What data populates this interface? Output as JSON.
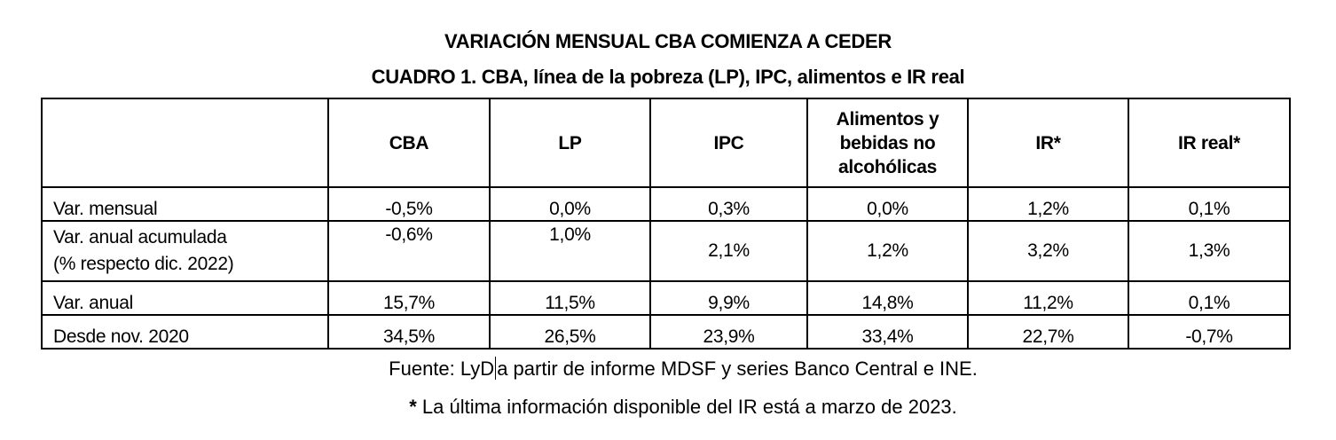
{
  "title": "VARIACIÓN MENSUAL CBA COMIENZA A CEDER",
  "subtitle": "CUADRO 1. CBA, línea de la pobreza (LP), IPC, alimentos e IR real",
  "table": {
    "headers": [
      "",
      "CBA",
      "LP",
      "IPC",
      "Alimentos y bebidas no alcohólicas",
      "IR*",
      "IR real*"
    ],
    "rows": [
      {
        "label": "Var. mensual",
        "values": [
          "-0,5%",
          "0,0%",
          "0,3%",
          "0,0%",
          "1,2%",
          "0,1%"
        ]
      },
      {
        "label": "Var. anual acumulada",
        "label2": "(% respecto dic. 2022)",
        "values": [
          "-0,6%",
          "1,0%",
          "2,1%",
          "1,2%",
          "3,2%",
          "1,3%"
        ]
      },
      {
        "label": "Var. anual",
        "values": [
          "15,7%",
          "11,5%",
          "9,9%",
          "14,8%",
          "11,2%",
          "0,1%"
        ]
      },
      {
        "label": "Desde nov. 2020",
        "values": [
          "34,5%",
          "26,5%",
          "23,9%",
          "33,4%",
          "22,7%",
          "-0,7%"
        ]
      }
    ]
  },
  "footer": {
    "source_prefix": "Fuente: LyD",
    "source_rest": "a partir de informe MDSF y series Banco Central e INE.",
    "note_star": "*",
    "note": " La última información disponible del IR está a marzo de 2023."
  }
}
